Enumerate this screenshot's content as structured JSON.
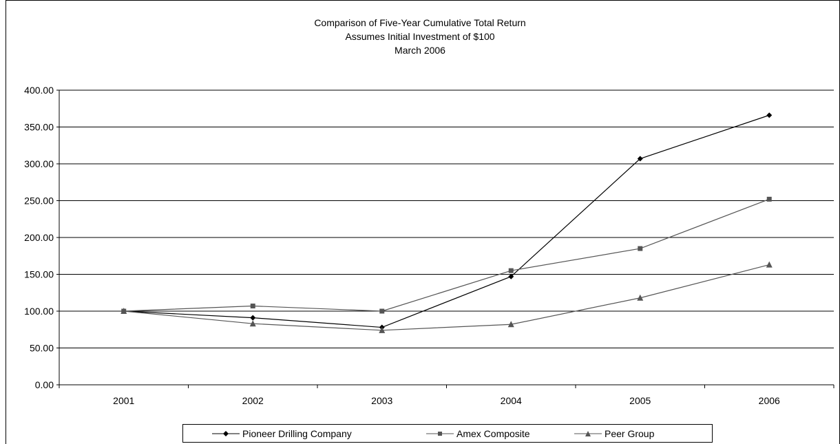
{
  "chart_data": {
    "type": "line",
    "title": "Comparison of Five-Year Cumulative Total Return",
    "subtitle_lines": [
      "Assumes Initial Investment of $100",
      "March 2006"
    ],
    "categories": [
      "2001",
      "2002",
      "2003",
      "2004",
      "2005",
      "2006"
    ],
    "ylim": [
      0,
      400
    ],
    "y_ticks": [
      "0.00",
      "50.00",
      "100.00",
      "150.00",
      "200.00",
      "250.00",
      "300.00",
      "350.00",
      "400.00"
    ],
    "grid": true,
    "legend_position": "bottom",
    "series": [
      {
        "name": "Pioneer Drilling Company",
        "values": [
          100,
          91,
          78,
          147,
          307,
          366
        ],
        "color": "#000000",
        "marker": "diamond"
      },
      {
        "name": "Amex Composite",
        "values": [
          100,
          107,
          100,
          155,
          185,
          252
        ],
        "color": "#555555",
        "marker": "square"
      },
      {
        "name": "Peer Group",
        "values": [
          100,
          83,
          74,
          82,
          118,
          163
        ],
        "color": "#555555",
        "marker": "triangle"
      }
    ]
  }
}
